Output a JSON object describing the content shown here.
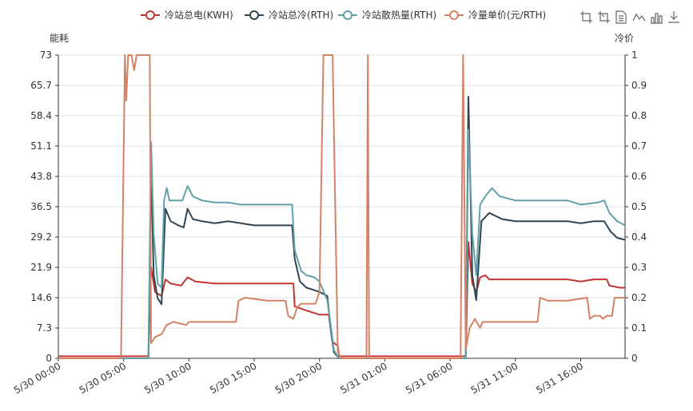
{
  "chart_data": {
    "type": "line",
    "left_axis_name": "能耗",
    "right_axis_name": "冷价",
    "left_ylim": [
      0,
      73
    ],
    "right_ylim": [
      0,
      1
    ],
    "left_ticks": [
      "0",
      "7.3",
      "14.6",
      "21.9",
      "29.2",
      "36.5",
      "43.8",
      "51.1",
      "58.4",
      "65.7",
      "73"
    ],
    "right_ticks": [
      "0",
      "0.1",
      "0.2",
      "0.3",
      "0.4",
      "0.5",
      "0.6",
      "0.7",
      "0.8",
      "0.9",
      "1"
    ],
    "x_ticks": [
      "5/30 00:00",
      "5/30 05:00",
      "5/30 10:00",
      "5/30 15:00",
      "5/30 20:00",
      "5/31 01:00",
      "5/31 06:00",
      "5/31 11:00",
      "5/31 16:00"
    ],
    "x_range_hours": [
      0,
      43.4
    ],
    "x_unit": "hours since 5/30 00:00",
    "grid": true,
    "legend_position": "top-center",
    "series": [
      {
        "name": "冷站总电(KWH)",
        "axis": "left",
        "color": "#c23531",
        "points": [
          [
            0,
            0.5
          ],
          [
            5,
            0.5
          ],
          [
            6.9,
            0.5
          ],
          [
            7.1,
            22
          ],
          [
            7.4,
            16
          ],
          [
            7.9,
            15
          ],
          [
            8.2,
            19
          ],
          [
            8.6,
            18
          ],
          [
            9.4,
            17.5
          ],
          [
            9.9,
            19.5
          ],
          [
            10.5,
            18.5
          ],
          [
            12,
            18
          ],
          [
            14,
            18
          ],
          [
            16,
            18
          ],
          [
            18,
            18
          ],
          [
            18.1,
            12.5
          ],
          [
            19,
            11.5
          ],
          [
            20,
            10.5
          ],
          [
            20.7,
            10.5
          ],
          [
            21,
            4
          ],
          [
            21.4,
            3
          ],
          [
            21.5,
            0.5
          ],
          [
            24,
            0.5
          ],
          [
            30,
            0.5
          ],
          [
            31.2,
            0.5
          ],
          [
            31.4,
            28
          ],
          [
            31.7,
            18
          ],
          [
            32,
            16
          ],
          [
            32.3,
            19.5
          ],
          [
            32.7,
            20
          ],
          [
            33,
            19
          ],
          [
            35,
            19
          ],
          [
            37,
            19
          ],
          [
            39,
            19
          ],
          [
            40,
            18.5
          ],
          [
            41,
            19
          ],
          [
            42,
            19
          ],
          [
            42.2,
            17.5
          ],
          [
            43,
            17
          ],
          [
            43.4,
            17
          ]
        ]
      },
      {
        "name": "冷站总冷(RTH)",
        "axis": "left",
        "color": "#2f4554",
        "points": [
          [
            0,
            0
          ],
          [
            6.9,
            0
          ],
          [
            7.1,
            45
          ],
          [
            7.3,
            20
          ],
          [
            7.6,
            14.5
          ],
          [
            7.9,
            13
          ],
          [
            8.2,
            36
          ],
          [
            8.6,
            33
          ],
          [
            9.2,
            32
          ],
          [
            9.6,
            31.5
          ],
          [
            9.9,
            36
          ],
          [
            10.3,
            33.5
          ],
          [
            11,
            33
          ],
          [
            12,
            32.5
          ],
          [
            13,
            33
          ],
          [
            14,
            32.5
          ],
          [
            15,
            32
          ],
          [
            16,
            32
          ],
          [
            17,
            32
          ],
          [
            17.9,
            32
          ],
          [
            18.1,
            24
          ],
          [
            18.5,
            18.5
          ],
          [
            19,
            17
          ],
          [
            19.5,
            16.5
          ],
          [
            20,
            16
          ],
          [
            20.6,
            15
          ],
          [
            20.9,
            6
          ],
          [
            21.1,
            1.5
          ],
          [
            21.5,
            0
          ],
          [
            24,
            0
          ],
          [
            31.2,
            0
          ],
          [
            31.4,
            63
          ],
          [
            31.7,
            20
          ],
          [
            32,
            14
          ],
          [
            32.4,
            33
          ],
          [
            33,
            35
          ],
          [
            34,
            33.5
          ],
          [
            35,
            33
          ],
          [
            36,
            33
          ],
          [
            37,
            33
          ],
          [
            38,
            33
          ],
          [
            39,
            33
          ],
          [
            40,
            32.5
          ],
          [
            41,
            33
          ],
          [
            41.8,
            33
          ],
          [
            42.3,
            30.5
          ],
          [
            42.8,
            29
          ],
          [
            43.4,
            28.5
          ]
        ]
      },
      {
        "name": "冷站散热量(RTH)",
        "axis": "left",
        "color": "#61a0a8",
        "points": [
          [
            0,
            0
          ],
          [
            6.9,
            0
          ],
          [
            7.1,
            52
          ],
          [
            7.3,
            30
          ],
          [
            7.6,
            18
          ],
          [
            7.9,
            17
          ],
          [
            8.1,
            38
          ],
          [
            8.3,
            41
          ],
          [
            8.5,
            38
          ],
          [
            9.5,
            38
          ],
          [
            9.9,
            41.5
          ],
          [
            10.3,
            39
          ],
          [
            11,
            38
          ],
          [
            12,
            37.5
          ],
          [
            13,
            37.5
          ],
          [
            14,
            37
          ],
          [
            15,
            37
          ],
          [
            16,
            37
          ],
          [
            17,
            37
          ],
          [
            17.9,
            37
          ],
          [
            18.1,
            26
          ],
          [
            18.6,
            21
          ],
          [
            19,
            20
          ],
          [
            19.6,
            19.5
          ],
          [
            20,
            18.5
          ],
          [
            20.6,
            14
          ],
          [
            20.9,
            7
          ],
          [
            21.1,
            2
          ],
          [
            21.5,
            0
          ],
          [
            24,
            0
          ],
          [
            31.2,
            0
          ],
          [
            31.4,
            55
          ],
          [
            31.7,
            30
          ],
          [
            32,
            20
          ],
          [
            32.3,
            37
          ],
          [
            32.7,
            39
          ],
          [
            33.2,
            41
          ],
          [
            33.8,
            39
          ],
          [
            35,
            38
          ],
          [
            37,
            38
          ],
          [
            39,
            38
          ],
          [
            40,
            37
          ],
          [
            41.3,
            37.5
          ],
          [
            41.8,
            38
          ],
          [
            42.2,
            35
          ],
          [
            42.8,
            33
          ],
          [
            43.4,
            32
          ]
        ]
      },
      {
        "name": "冷量单价(元/RTH)",
        "axis": "right",
        "color": "#d48265",
        "points": [
          [
            0,
            0
          ],
          [
            4.8,
            0
          ],
          [
            5.1,
            1
          ],
          [
            5.2,
            0.85
          ],
          [
            5.35,
            1
          ],
          [
            5.6,
            1
          ],
          [
            5.8,
            0.95
          ],
          [
            6,
            1
          ],
          [
            7,
            1
          ],
          [
            7.1,
            0.05
          ],
          [
            7.4,
            0.07
          ],
          [
            7.9,
            0.08
          ],
          [
            8.3,
            0.11
          ],
          [
            8.8,
            0.12
          ],
          [
            9.8,
            0.11
          ],
          [
            10,
            0.12
          ],
          [
            12,
            0.12
          ],
          [
            13,
            0.12
          ],
          [
            13.6,
            0.12
          ],
          [
            13.8,
            0.19
          ],
          [
            14.3,
            0.2
          ],
          [
            16,
            0.19
          ],
          [
            17.4,
            0.19
          ],
          [
            17.6,
            0.14
          ],
          [
            18,
            0.13
          ],
          [
            18.3,
            0.17
          ],
          [
            18.6,
            0.18
          ],
          [
            19,
            0.18
          ],
          [
            19.7,
            0.18
          ],
          [
            20,
            0.22
          ],
          [
            20.3,
            1
          ],
          [
            21,
            1
          ],
          [
            21.4,
            0.02
          ],
          [
            21.7,
            0
          ],
          [
            23.6,
            0
          ],
          [
            23.7,
            1
          ],
          [
            23.8,
            0
          ],
          [
            30.8,
            0
          ],
          [
            31,
            1
          ],
          [
            31.2,
            0.03
          ],
          [
            31.5,
            0.1
          ],
          [
            31.9,
            0.13
          ],
          [
            32.3,
            0.1
          ],
          [
            32.5,
            0.12
          ],
          [
            33.5,
            0.12
          ],
          [
            35,
            0.12
          ],
          [
            36.7,
            0.12
          ],
          [
            36.9,
            0.2
          ],
          [
            37.5,
            0.19
          ],
          [
            39,
            0.19
          ],
          [
            40.5,
            0.2
          ],
          [
            40.7,
            0.13
          ],
          [
            41,
            0.14
          ],
          [
            41.5,
            0.14
          ],
          [
            41.7,
            0.13
          ],
          [
            42,
            0.14
          ],
          [
            42.4,
            0.14
          ],
          [
            42.6,
            0.2
          ],
          [
            43.4,
            0.2
          ]
        ]
      }
    ],
    "toolbox_icons": [
      "crop-icon",
      "crop-reverse-icon",
      "document-icon",
      "line-chart-icon",
      "bar-chart-icon",
      "download-icon"
    ]
  }
}
